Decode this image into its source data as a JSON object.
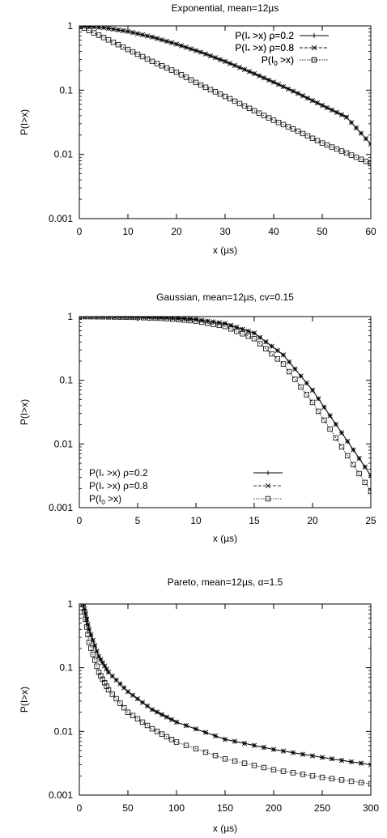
{
  "chart_data": [
    {
      "type": "line",
      "title": "Exponential, mean=12µs",
      "xlabel": "x (µs)",
      "ylabel": "P(I>x)",
      "xlim": [
        0,
        60
      ],
      "ylim": [
        0.001,
        1
      ],
      "y_scale": "log",
      "x_ticks": [
        0,
        10,
        20,
        30,
        40,
        50,
        60
      ],
      "x_tick_labels": [
        "0",
        "10",
        "20",
        "30",
        "40",
        "50",
        "60"
      ],
      "y_ticks": [
        0.001,
        0.01,
        0.1,
        1
      ],
      "y_tick_labels": [
        "0.001",
        "0.01",
        "0.1",
        "1"
      ],
      "grid": false,
      "legend_position": "top-right",
      "x": [
        0,
        5,
        10,
        15,
        20,
        25,
        30,
        35,
        40,
        45,
        50,
        55,
        60
      ],
      "series": [
        {
          "name_main": "P(I",
          "name_sub": "*",
          "name_rest": " >x) ρ=0.2",
          "marker": "plus",
          "line": "solid",
          "values": [
            1.0,
            0.94,
            0.82,
            0.67,
            0.52,
            0.39,
            0.28,
            0.195,
            0.133,
            0.089,
            0.058,
            0.038,
            0.0145
          ]
        },
        {
          "name_main": "P(I",
          "name_sub": "*",
          "name_rest": " >x) ρ=0.8",
          "marker": "cross",
          "line": "dashed",
          "values": [
            1.0,
            0.94,
            0.82,
            0.67,
            0.52,
            0.39,
            0.28,
            0.195,
            0.133,
            0.089,
            0.058,
            0.038,
            0.0145
          ]
        },
        {
          "name_main": "P(I",
          "name_sub": "0",
          "name_rest": " >x)",
          "marker": "square",
          "line": "dotted",
          "values": [
            1.0,
            0.66,
            0.43,
            0.28,
            0.19,
            0.12,
            0.08,
            0.052,
            0.034,
            0.023,
            0.015,
            0.0105,
            0.0072
          ]
        }
      ]
    },
    {
      "type": "line",
      "title": "Gaussian, mean=12µs, cv=0.15",
      "xlabel": "x (µs)",
      "ylabel": "P(I>x)",
      "xlim": [
        0,
        25
      ],
      "ylim": [
        0.001,
        1
      ],
      "y_scale": "log",
      "x_ticks": [
        0,
        5,
        10,
        15,
        20,
        25
      ],
      "x_tick_labels": [
        "0",
        "5",
        "10",
        "15",
        "20",
        "25"
      ],
      "y_ticks": [
        0.001,
        0.01,
        0.1,
        1
      ],
      "y_tick_labels": [
        "0.001",
        "0.01",
        "0.1",
        "1"
      ],
      "grid": false,
      "legend_position": "bottom-left",
      "x": [
        0,
        2.5,
        5,
        7.5,
        10,
        12.5,
        15,
        17.5,
        20,
        22.5,
        25
      ],
      "series": [
        {
          "name_main": "P(I",
          "name_sub": "*",
          "name_rest": " >x) ρ=0.2",
          "marker": "plus",
          "line": "solid",
          "values": [
            1.0,
            0.995,
            0.985,
            0.96,
            0.9,
            0.78,
            0.55,
            0.25,
            0.07,
            0.015,
            0.0032
          ]
        },
        {
          "name_main": "P(I",
          "name_sub": "*",
          "name_rest": " >x) ρ=0.8",
          "marker": "cross",
          "line": "dashed",
          "values": [
            1.0,
            0.995,
            0.985,
            0.96,
            0.9,
            0.78,
            0.55,
            0.25,
            0.07,
            0.015,
            0.0032
          ]
        },
        {
          "name_main": "P(I",
          "name_sub": "0",
          "name_rest": " >x)",
          "marker": "square",
          "line": "dotted",
          "values": [
            1.0,
            0.99,
            0.97,
            0.93,
            0.85,
            0.7,
            0.45,
            0.18,
            0.045,
            0.009,
            0.0018
          ]
        }
      ]
    },
    {
      "type": "line",
      "title": "Pareto, mean=12µs, α=1.5",
      "xlabel": "x (µs)",
      "ylabel": "P(I>x)",
      "xlim": [
        0,
        300
      ],
      "ylim": [
        0.001,
        1
      ],
      "y_scale": "log",
      "x_ticks": [
        0,
        50,
        100,
        150,
        200,
        250,
        300
      ],
      "x_tick_labels": [
        "0",
        "50",
        "100",
        "150",
        "200",
        "250",
        "300"
      ],
      "y_ticks": [
        0.001,
        0.01,
        0.1,
        1
      ],
      "y_tick_labels": [
        "0.001",
        "0.01",
        "0.1",
        "1"
      ],
      "grid": false,
      "legend_position": "top-right",
      "x": [
        4,
        10,
        20,
        30,
        50,
        75,
        100,
        150,
        200,
        250,
        300
      ],
      "series": [
        {
          "name_main": "P(I",
          "name_sub": "*",
          "name_rest": " >x) ρ=0.2",
          "marker": "plus",
          "line": "solid",
          "values": [
            1.0,
            0.4,
            0.15,
            0.085,
            0.042,
            0.022,
            0.014,
            0.0075,
            0.0052,
            0.0039,
            0.003
          ]
        },
        {
          "name_main": "P(I",
          "name_sub": "*",
          "name_rest": " >x) ρ=0.8",
          "marker": "cross",
          "line": "dashed",
          "values": [
            1.0,
            0.4,
            0.15,
            0.085,
            0.042,
            0.022,
            0.014,
            0.0075,
            0.0052,
            0.0039,
            0.003
          ]
        },
        {
          "name_main": "P(I",
          "name_sub": "0",
          "name_rest": " >x)",
          "marker": "square",
          "line": "dotted",
          "values": [
            1.0,
            0.25,
            0.085,
            0.045,
            0.02,
            0.011,
            0.0068,
            0.0037,
            0.0025,
            0.0019,
            0.0015
          ]
        }
      ]
    }
  ]
}
